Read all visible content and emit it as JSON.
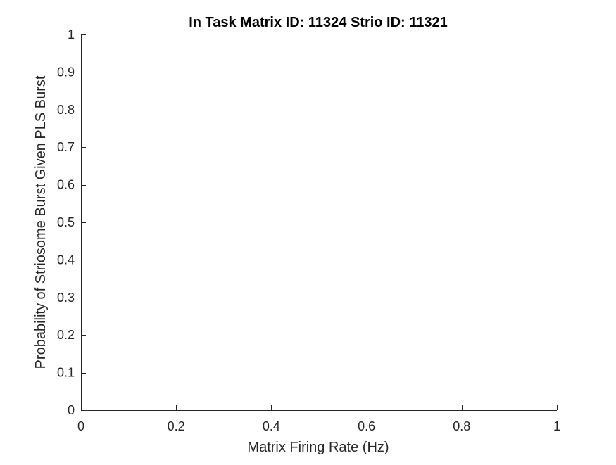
{
  "chart_data": {
    "type": "scatter",
    "title": "In Task Matrix ID: 11324 Strio ID: 11321",
    "xlabel": "Matrix Firing Rate (Hz)",
    "ylabel": "Probability of Striosome Burst Given PLS Burst",
    "xlim": [
      0,
      1
    ],
    "ylim": [
      0,
      1
    ],
    "xticks": [
      0,
      0.2,
      0.4,
      0.6,
      0.8,
      1
    ],
    "xtick_labels": [
      "0",
      "0.2",
      "0.4",
      "0.6",
      "0.8",
      "1"
    ],
    "yticks": [
      0,
      0.1,
      0.2,
      0.3,
      0.4,
      0.5,
      0.6,
      0.7,
      0.8,
      0.9,
      1
    ],
    "ytick_labels": [
      "0",
      "0.1",
      "0.2",
      "0.3",
      "0.4",
      "0.5",
      "0.6",
      "0.7",
      "0.8",
      "0.9",
      "1"
    ],
    "grid": false,
    "series": [],
    "colors": {
      "axis": "#262626",
      "title": "#000000",
      "background": "#ffffff"
    }
  }
}
